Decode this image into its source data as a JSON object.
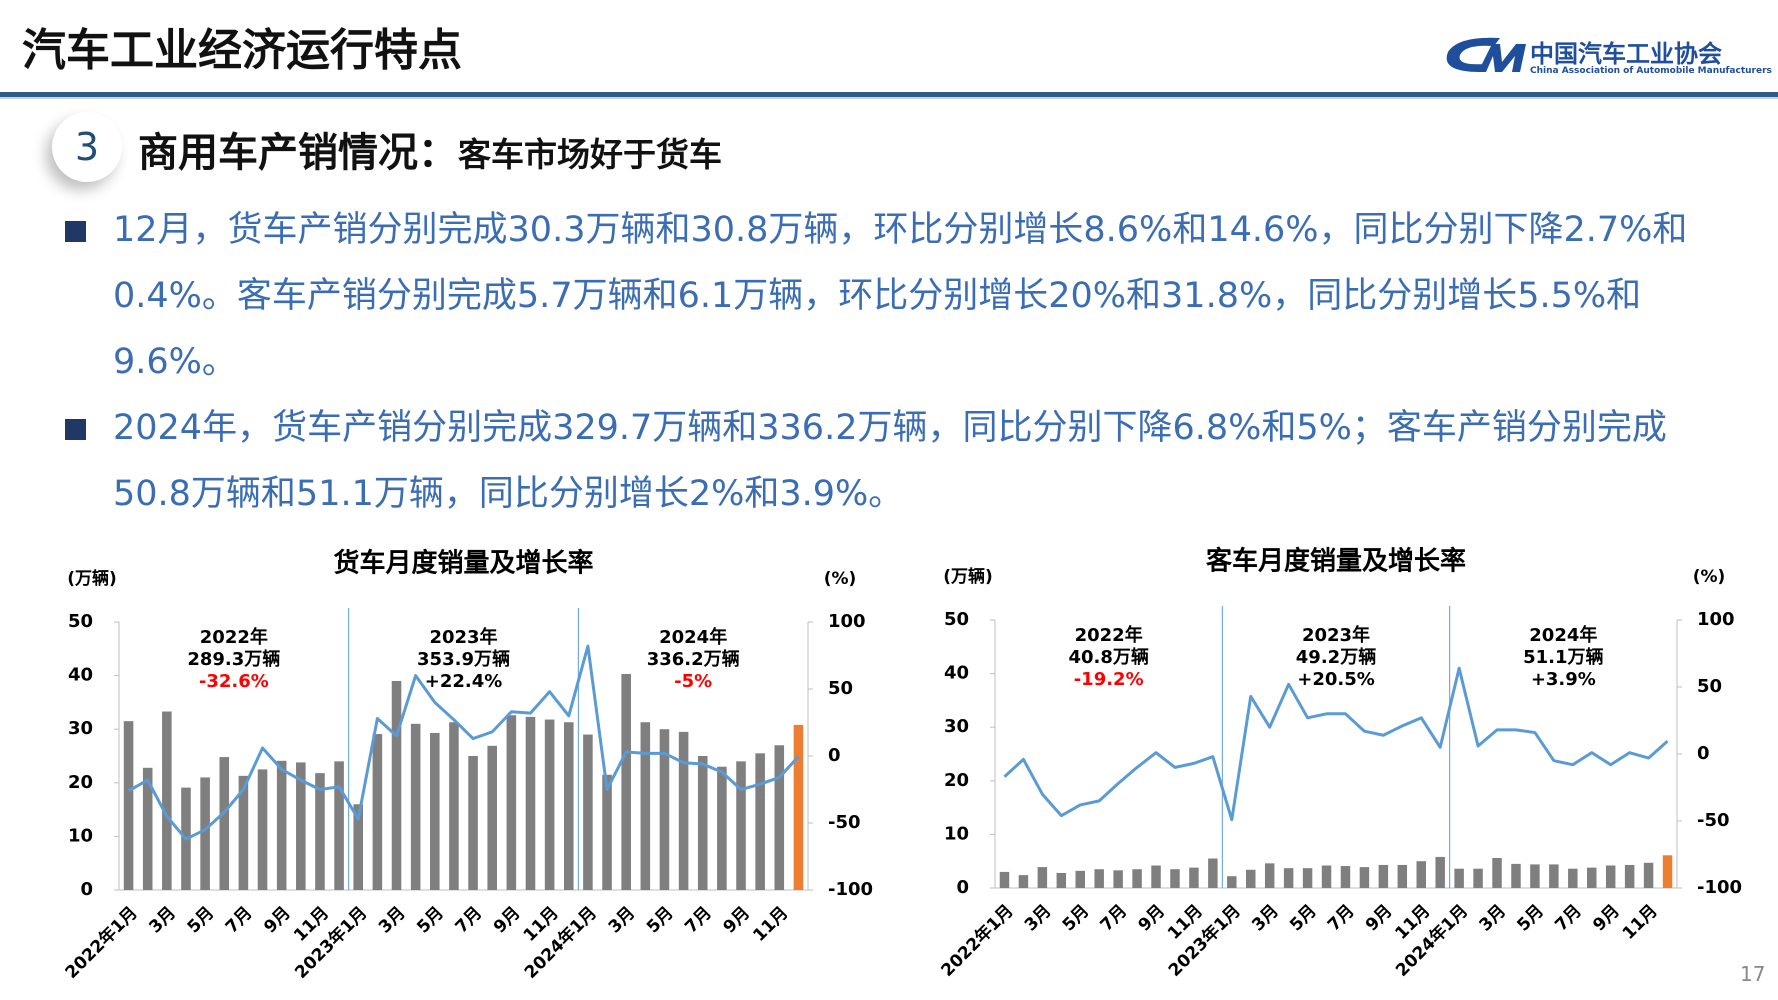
{
  "header": {
    "title": "汽车工业经济运行特点",
    "logo": {
      "name": "中国汽车工业协会",
      "subtitle": "China Association of Automobile Manufacturers"
    }
  },
  "section": {
    "number": "3",
    "title": "商用车产销情况：",
    "subtitle": "客车市场好于货车"
  },
  "bullets": [
    "12月，货车产销分别完成30.3万辆和30.8万辆，环比分别增长8.6%和14.6%，同比分别下降2.7%和0.4%。客车产销分别完成5.7万辆和6.1万辆，环比分别增长20%和31.8%，同比分别增长5.5%和9.6%。",
    "2024年，货车产销分别完成329.7万辆和336.2万辆，同比分别下降6.8%和5%；客车产销分别完成50.8万辆和51.1万辆，同比分别增长2%和3.9%。"
  ],
  "chart_data": [
    {
      "type": "combo",
      "title": "货车月度销量及增长率",
      "y_label": "(万辆)",
      "y2_label": "(%)",
      "categories": [
        "2022年1月",
        null,
        "3月",
        null,
        "5月",
        null,
        "7月",
        null,
        "9月",
        null,
        "11月",
        null,
        "2023年1月",
        null,
        "3月",
        null,
        "5月",
        null,
        "7月",
        null,
        "9月",
        null,
        "11月",
        null,
        "2024年1月",
        null,
        "3月",
        null,
        "5月",
        null,
        "7月",
        null,
        "9月",
        null,
        "11月",
        null
      ],
      "series": [
        {
          "type": "bar",
          "colors": [
            "#7f7f7f",
            "#7f7f7f",
            "#7f7f7f",
            "#7f7f7f",
            "#7f7f7f",
            "#7f7f7f",
            "#7f7f7f",
            "#7f7f7f",
            "#7f7f7f",
            "#7f7f7f",
            "#7f7f7f",
            "#7f7f7f",
            "#7f7f7f",
            "#7f7f7f",
            "#7f7f7f",
            "#7f7f7f",
            "#7f7f7f",
            "#7f7f7f",
            "#7f7f7f",
            "#7f7f7f",
            "#7f7f7f",
            "#7f7f7f",
            "#7f7f7f",
            "#7f7f7f",
            "#7f7f7f",
            "#7f7f7f",
            "#7f7f7f",
            "#7f7f7f",
            "#7f7f7f",
            "#7f7f7f",
            "#7f7f7f",
            "#7f7f7f",
            "#7f7f7f",
            "#7f7f7f",
            "#7f7f7f",
            "#ed7d31"
          ],
          "values": [
            31.5,
            22.8,
            33.3,
            19.1,
            21,
            24.8,
            21.3,
            22.5,
            24.1,
            23.8,
            21.8,
            24,
            16,
            29.1,
            39,
            31,
            29.3,
            31.3,
            25,
            26.9,
            32.6,
            32.3,
            31.8,
            31.3,
            29,
            21.5,
            40.3,
            31.3,
            30,
            29.5,
            25,
            23,
            24,
            25.5,
            27,
            30.8
          ]
        },
        {
          "type": "line",
          "axis": "y2",
          "color": "#5b9bd5",
          "values": [
            -26,
            -18,
            -45,
            -62,
            -55,
            -42,
            -25,
            6,
            -10,
            -18,
            -25,
            -23,
            -47,
            28,
            15,
            60,
            40,
            27,
            13,
            18,
            33,
            32,
            48,
            30,
            82,
            -25,
            3,
            2,
            2,
            -5,
            -6,
            -12,
            -25,
            -21,
            -16,
            -0.4
          ]
        }
      ],
      "ylim": [
        0,
        50
      ],
      "yticks": [
        0,
        10,
        20,
        30,
        40,
        50
      ],
      "y2lim": [
        -100,
        100
      ],
      "y2ticks": [
        -100,
        -50,
        0,
        50,
        100
      ],
      "divider_color": "#5b9bd5",
      "annotations": [
        {
          "year": "2022年",
          "total": "289.3万辆",
          "growth": "-32.6%",
          "growth_color": "#ff0000"
        },
        {
          "year": "2023年",
          "total": "353.9万辆",
          "growth": "+22.4%",
          "growth_color": "#000000"
        },
        {
          "year": "2024年",
          "total": "336.2万辆",
          "growth": "-5%",
          "growth_color": "#ff0000"
        }
      ]
    },
    {
      "type": "combo",
      "title": "客车月度销量及增长率",
      "y_label": "(万辆)",
      "y2_label": "(%)",
      "categories": [
        "2022年1月",
        null,
        "3月",
        null,
        "5月",
        null,
        "7月",
        null,
        "9月",
        null,
        "11月",
        null,
        "2023年1月",
        null,
        "3月",
        null,
        "5月",
        null,
        "7月",
        null,
        "9月",
        null,
        "11月",
        null,
        "2024年1月",
        null,
        "3月",
        null,
        "5月",
        null,
        "7月",
        null,
        "9月",
        null,
        "11月",
        null
      ],
      "series": [
        {
          "type": "bar",
          "colors": [
            "#7f7f7f",
            "#7f7f7f",
            "#7f7f7f",
            "#7f7f7f",
            "#7f7f7f",
            "#7f7f7f",
            "#7f7f7f",
            "#7f7f7f",
            "#7f7f7f",
            "#7f7f7f",
            "#7f7f7f",
            "#7f7f7f",
            "#7f7f7f",
            "#7f7f7f",
            "#7f7f7f",
            "#7f7f7f",
            "#7f7f7f",
            "#7f7f7f",
            "#7f7f7f",
            "#7f7f7f",
            "#7f7f7f",
            "#7f7f7f",
            "#7f7f7f",
            "#7f7f7f",
            "#7f7f7f",
            "#7f7f7f",
            "#7f7f7f",
            "#7f7f7f",
            "#7f7f7f",
            "#7f7f7f",
            "#7f7f7f",
            "#7f7f7f",
            "#7f7f7f",
            "#7f7f7f",
            "#7f7f7f",
            "#ed7d31"
          ],
          "values": [
            3,
            2.4,
            3.9,
            2.8,
            3.2,
            3.5,
            3.3,
            3.5,
            4.2,
            3.5,
            3.8,
            5.5,
            2.2,
            3.4,
            4.6,
            3.7,
            3.7,
            4.2,
            4.1,
            3.9,
            4.3,
            4.3,
            5,
            5.8,
            3.6,
            3.6,
            5.6,
            4.5,
            4.4,
            4.4,
            3.6,
            3.8,
            4.2,
            4.3,
            4.7,
            6.1
          ]
        },
        {
          "type": "line",
          "axis": "y2",
          "color": "#5b9bd5",
          "values": [
            -17,
            -4,
            -30,
            -46,
            -38,
            -35,
            -22,
            -10,
            1,
            -10,
            -7,
            -2,
            -49,
            43,
            20,
            52,
            27,
            30,
            30,
            17,
            14,
            21,
            27,
            5,
            64,
            6,
            18,
            18,
            16,
            -5,
            -8,
            1,
            -8,
            1,
            -3,
            9.6
          ]
        }
      ],
      "ylim": [
        0,
        50
      ],
      "yticks": [
        0,
        10,
        20,
        30,
        40,
        50
      ],
      "y2lim": [
        -100,
        100
      ],
      "y2ticks": [
        -100,
        -50,
        0,
        50,
        100
      ],
      "divider_color": "#5b9bd5",
      "annotations": [
        {
          "year": "2022年",
          "total": "40.8万辆",
          "growth": "-19.2%",
          "growth_color": "#ff0000"
        },
        {
          "year": "2023年",
          "total": "49.2万辆",
          "growth": "+20.5%",
          "growth_color": "#000000"
        },
        {
          "year": "2024年",
          "total": "51.1万辆",
          "growth": "+3.9%",
          "growth_color": "#000000"
        }
      ]
    }
  ],
  "page_number": "17"
}
